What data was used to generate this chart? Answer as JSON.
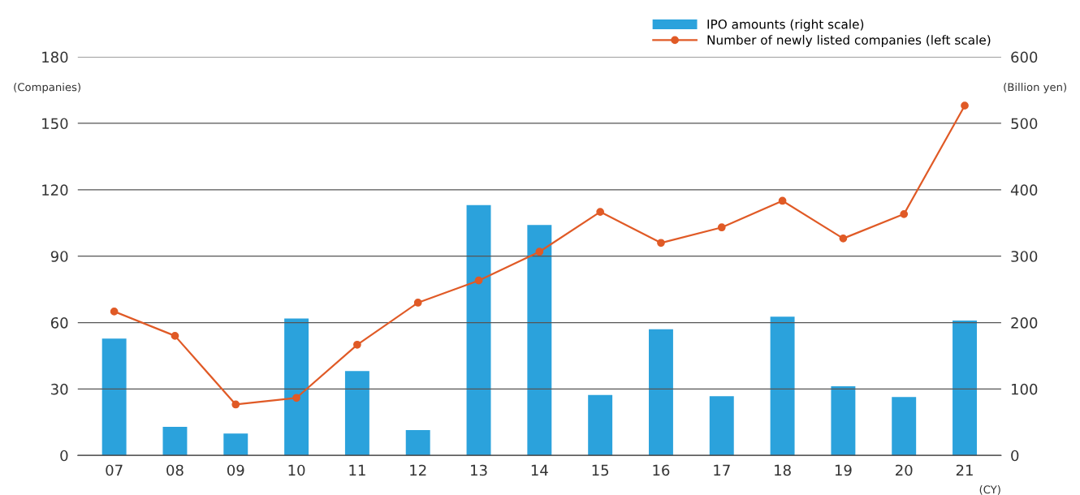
{
  "chart_data": {
    "type": "bar",
    "ylabel": "(Companies)",
    "y2label": "(Billion yen)",
    "xlabel": "(CY)",
    "categories": [
      "07",
      "08",
      "09",
      "10",
      "11",
      "12",
      "13",
      "14",
      "15",
      "16",
      "17",
      "18",
      "19",
      "20",
      "21"
    ],
    "series": [
      {
        "name": "IPO amounts (right scale)",
        "axis": "y2",
        "color": "#2ba2dc",
        "values": [
          176,
          43,
          33,
          206,
          127,
          38,
          377,
          347,
          91,
          190,
          89,
          209,
          104,
          88,
          203
        ]
      },
      {
        "name": "Number of newly listed companies (left scale)",
        "type": "line",
        "color": "#e05a26",
        "marker": "circle",
        "values": [
          65,
          54,
          23,
          26,
          50,
          69,
          79,
          92,
          110,
          96,
          103,
          115,
          98,
          109,
          158
        ]
      }
    ],
    "ylim": [
      0,
      180
    ],
    "yticks": [
      0,
      30,
      60,
      90,
      120,
      150,
      180
    ],
    "y2lim": [
      0,
      600
    ],
    "y2ticks": [
      0,
      100,
      200,
      300,
      400,
      500,
      600
    ],
    "grid": "y",
    "legend": "top right"
  }
}
